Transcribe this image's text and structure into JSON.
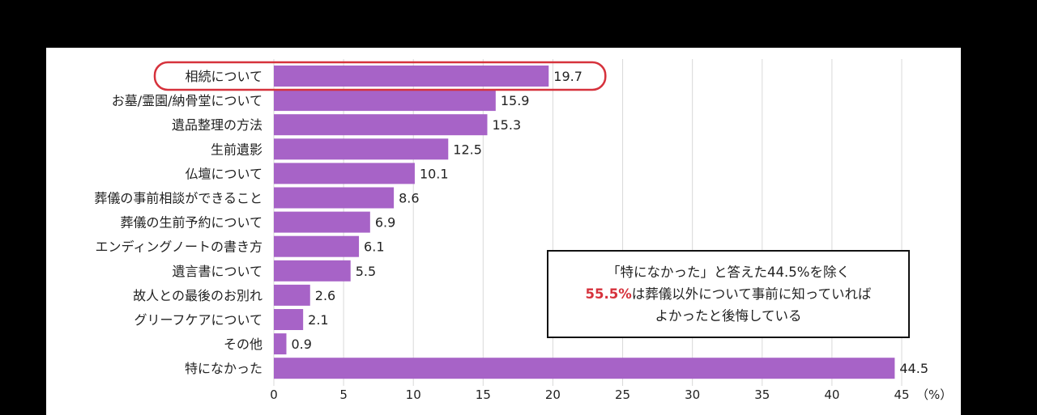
{
  "chart_data": {
    "type": "bar",
    "orientation": "horizontal",
    "categories": [
      "相続について",
      "お墓/霊園/納骨堂について",
      "遺品整理の方法",
      "生前遺影",
      "仏壇について",
      "葬儀の事前相談ができること",
      "葬儀の生前予約について",
      "エンディングノートの書き方",
      "遺言書について",
      "故人との最後のお別れ",
      "グリーフケアについて",
      "その他",
      "特になかった"
    ],
    "values": [
      19.7,
      15.9,
      15.3,
      12.5,
      10.1,
      8.6,
      6.9,
      6.1,
      5.5,
      2.6,
      2.1,
      0.9,
      44.5
    ],
    "value_labels": [
      "19.7",
      "15.9",
      "15.3",
      "12.5",
      "10.1",
      "8.6",
      "6.9",
      "6.1",
      "5.5",
      "2.6",
      "2.1",
      "0.9",
      "44.5"
    ],
    "xlim": [
      0,
      45
    ],
    "xticks": [
      "0",
      "5",
      "10",
      "15",
      "20",
      "25",
      "30",
      "35",
      "40",
      "45"
    ],
    "unit_label": "（%）",
    "grid": true,
    "highlighted_category": "相続について",
    "bar_color": "#a763c7",
    "highlight_color": "#d6323c",
    "grid_color": "#d9d9d9"
  },
  "callout": {
    "line1": "「特になかった」と答えた44.5%を除く",
    "line2_highlight": "55.5%",
    "line2_rest": "は葬儀以外について事前に知っていれば",
    "line3": "よかったと後悔している"
  }
}
